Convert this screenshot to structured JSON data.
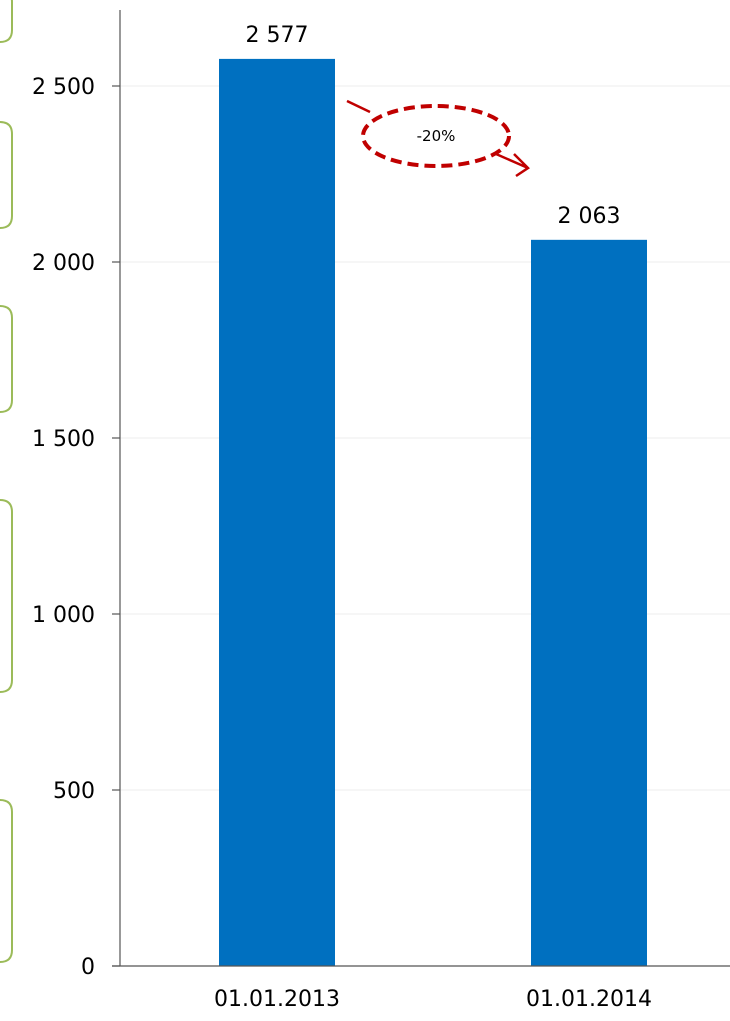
{
  "chart_data": {
    "type": "bar",
    "categories": [
      "01.01.2013",
      "01.01.2014"
    ],
    "values": [
      2577,
      2063
    ],
    "data_labels": [
      "2 577",
      "2 063"
    ],
    "yticks": [
      0,
      500,
      1000,
      1500,
      2000,
      2500
    ],
    "ytick_labels": [
      "0",
      "500",
      "1 000",
      "1 500",
      "2 000",
      "2 500"
    ],
    "ylim": [
      0,
      2700
    ],
    "grid": true,
    "bar_color": "#0070c0",
    "annotation": {
      "text": "-20%",
      "color": "#c00000"
    }
  }
}
